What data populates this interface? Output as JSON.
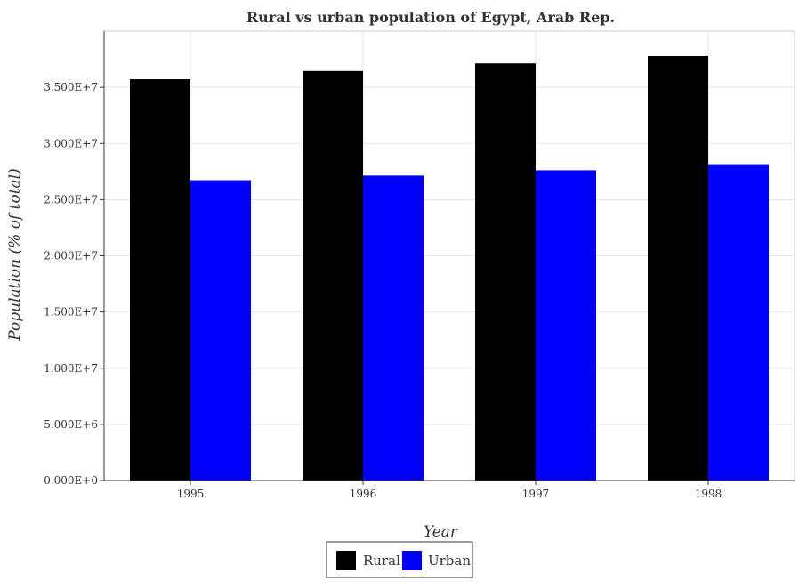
{
  "chart_data": {
    "type": "bar",
    "title": "Rural vs urban population of Egypt, Arab Rep.",
    "xlabel": "Year",
    "ylabel": "Population (% of total)",
    "categories": [
      "1995",
      "1996",
      "1997",
      "1998"
    ],
    "series": [
      {
        "name": "Rural",
        "color": "#000000",
        "values": [
          35720000,
          36450000,
          37130000,
          37780000
        ]
      },
      {
        "name": "Urban",
        "color": "#0000ff",
        "values": [
          26730000,
          27140000,
          27610000,
          28150000
        ]
      }
    ],
    "ylim": [
      0,
      40000000
    ],
    "yticks": [
      0,
      5000000,
      10000000,
      15000000,
      20000000,
      25000000,
      30000000,
      35000000
    ],
    "ytick_labels": [
      "0.000E+0",
      "5.000E+6",
      "1.000E+7",
      "1.500E+7",
      "2.000E+7",
      "2.500E+7",
      "3.000E+7",
      "3.500E+7"
    ],
    "grid": true,
    "legend_position": "bottom-center"
  }
}
